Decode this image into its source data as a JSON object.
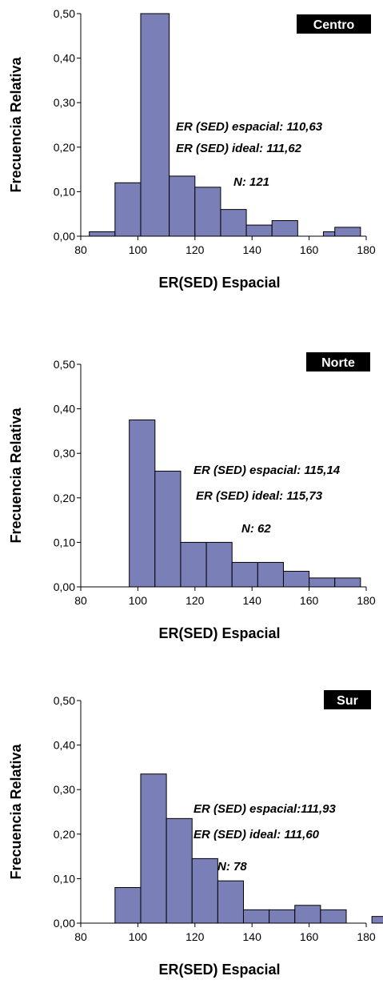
{
  "colors": {
    "bar_fill": "#7b7fb8",
    "badge_bg": "#000000",
    "badge_text": "#ffffff"
  },
  "chart_data": [
    {
      "type": "bar",
      "badge": "Centro",
      "ylabel": "Frecuencia Relativa",
      "xlabel": "ER(SED) Espacial",
      "xlim": [
        80,
        180
      ],
      "ylim": [
        0,
        0.5
      ],
      "xticks": [
        80,
        100,
        120,
        140,
        160,
        180
      ],
      "yticks": [
        "0,00",
        "0,10",
        "0,20",
        "0,30",
        "0,40",
        "0,50"
      ],
      "bins": [
        {
          "x0": 83,
          "x1": 92,
          "value": 0.01
        },
        {
          "x0": 92,
          "x1": 101,
          "value": 0.12
        },
        {
          "x0": 101,
          "x1": 111,
          "value": 0.5
        },
        {
          "x0": 111,
          "x1": 120,
          "value": 0.135
        },
        {
          "x0": 120,
          "x1": 129,
          "value": 0.11
        },
        {
          "x0": 129,
          "x1": 138,
          "value": 0.06
        },
        {
          "x0": 138,
          "x1": 147,
          "value": 0.025
        },
        {
          "x0": 147,
          "x1": 156,
          "value": 0.035
        },
        {
          "x0": 165,
          "x1": 169,
          "value": 0.01
        },
        {
          "x0": 169,
          "x1": 178,
          "value": 0.02
        }
      ],
      "annotations": [
        "ER (SED) espacial: 110,63",
        "ER (SED) ideal: 111,62",
        "N: 121"
      ]
    },
    {
      "type": "bar",
      "badge": "Norte",
      "ylabel": "Frecuencia Relativa",
      "xlabel": "ER(SED) Espacial",
      "xlim": [
        80,
        180
      ],
      "ylim": [
        0,
        0.5
      ],
      "xticks": [
        80,
        100,
        120,
        140,
        160,
        180
      ],
      "yticks": [
        "0,00",
        "0,10",
        "0,20",
        "0,30",
        "0,40",
        "0,50"
      ],
      "bins": [
        {
          "x0": 97,
          "x1": 106,
          "value": 0.375
        },
        {
          "x0": 106,
          "x1": 115,
          "value": 0.26
        },
        {
          "x0": 115,
          "x1": 124,
          "value": 0.1
        },
        {
          "x0": 124,
          "x1": 133,
          "value": 0.1
        },
        {
          "x0": 133,
          "x1": 142,
          "value": 0.055
        },
        {
          "x0": 142,
          "x1": 151,
          "value": 0.055
        },
        {
          "x0": 151,
          "x1": 160,
          "value": 0.035
        },
        {
          "x0": 160,
          "x1": 169,
          "value": 0.02
        },
        {
          "x0": 169,
          "x1": 178,
          "value": 0.02
        }
      ],
      "annotations": [
        "ER (SED) espacial: 115,14",
        "ER (SED) ideal: 115,73",
        "N: 62"
      ]
    },
    {
      "type": "bar",
      "badge": "Sur",
      "ylabel": "Frecuencia Relativa",
      "xlabel": "ER(SED) Espacial",
      "xlim": [
        80,
        180
      ],
      "ylim": [
        0,
        0.5
      ],
      "xticks": [
        80,
        100,
        120,
        140,
        160,
        180
      ],
      "yticks": [
        "0,00",
        "0,10",
        "0,20",
        "0,30",
        "0,40",
        "0,50"
      ],
      "bins": [
        {
          "x0": 92,
          "x1": 101,
          "value": 0.08
        },
        {
          "x0": 101,
          "x1": 110,
          "value": 0.335
        },
        {
          "x0": 110,
          "x1": 119,
          "value": 0.235
        },
        {
          "x0": 119,
          "x1": 128,
          "value": 0.145
        },
        {
          "x0": 128,
          "x1": 137,
          "value": 0.095
        },
        {
          "x0": 137,
          "x1": 146,
          "value": 0.03
        },
        {
          "x0": 146,
          "x1": 155,
          "value": 0.03
        },
        {
          "x0": 155,
          "x1": 164,
          "value": 0.04
        },
        {
          "x0": 164,
          "x1": 173,
          "value": 0.03
        },
        {
          "x0": 182,
          "x1": 191,
          "value": 0.015
        }
      ],
      "annotations": [
        "ER (SED) espacial:111,93",
        "ER (SED) ideal: 111,60",
        "N: 78"
      ]
    }
  ]
}
